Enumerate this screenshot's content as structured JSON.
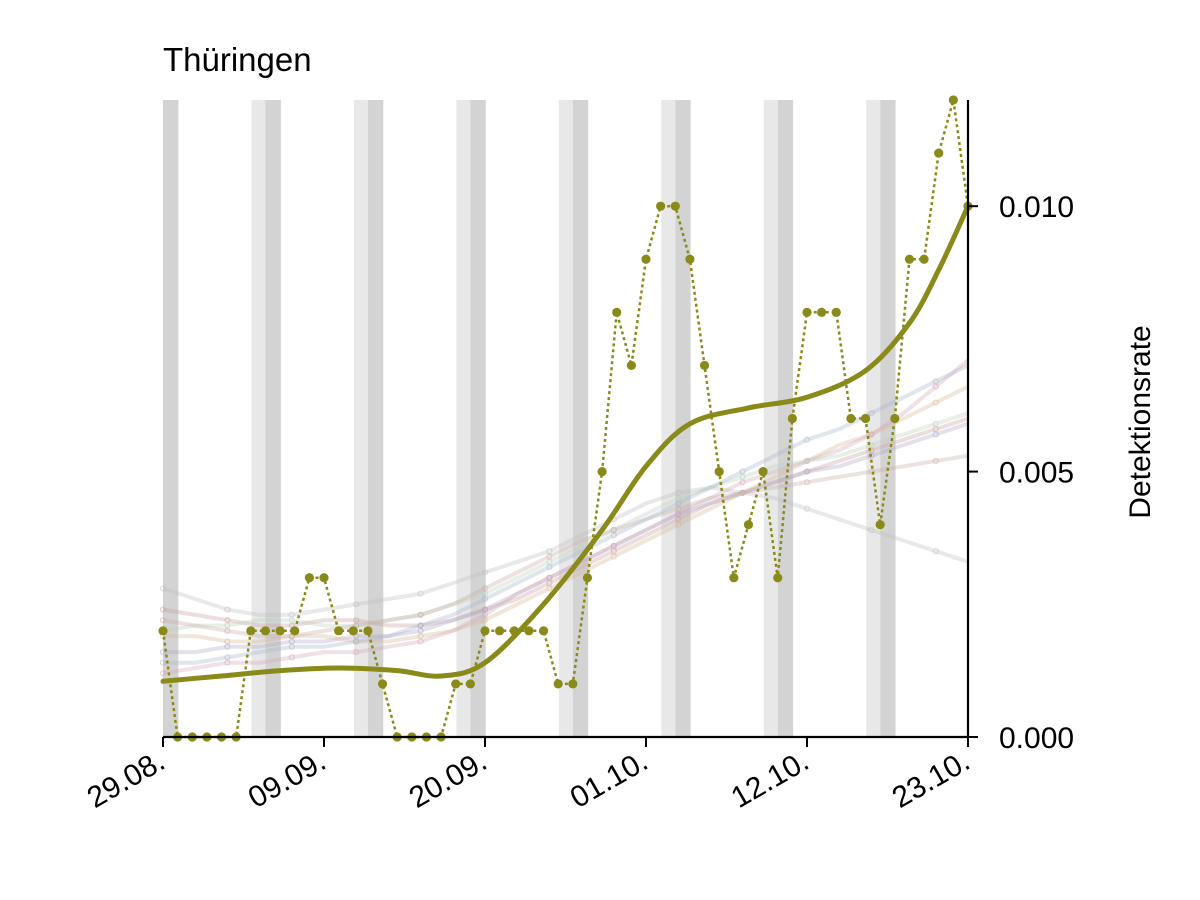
{
  "chart_data": {
    "type": "line",
    "title": "Thüringen",
    "ylabel": "Detektionsrate",
    "xlabel": "",
    "x_start": "29.08.",
    "x_ticks": [
      "29.08.",
      "09.09.",
      "20.09.",
      "01.10.",
      "12.10.",
      "23.10."
    ],
    "y_ticks": [
      "0.000",
      "0.005",
      "0.010"
    ],
    "ylim": [
      0,
      0.012
    ],
    "xlim": [
      "29.08.",
      "23.10."
    ],
    "y_axis_position": "right",
    "grid": false,
    "weekend_shading": true,
    "weekend_pairs": [
      [
        "28.08.",
        "29.08."
      ],
      [
        "04.09.",
        "05.09."
      ],
      [
        "11.09.",
        "12.09."
      ],
      [
        "18.09.",
        "19.09."
      ],
      [
        "25.09.",
        "26.09."
      ],
      [
        "02.10.",
        "03.10."
      ],
      [
        "09.10.",
        "10.10."
      ],
      [
        "16.10.",
        "17.10."
      ]
    ],
    "series": [
      {
        "role": "daily_rate",
        "style": "dotted-with-markers",
        "color": "#8a8a1a",
        "x": [
          "29.08.",
          "30.08.",
          "31.08.",
          "01.09.",
          "02.09.",
          "03.09.",
          "04.09.",
          "05.09.",
          "06.09.",
          "07.09.",
          "08.09.",
          "09.09.",
          "10.09.",
          "11.09.",
          "12.09.",
          "13.09.",
          "14.09.",
          "15.09.",
          "16.09.",
          "17.09.",
          "18.09.",
          "19.09.",
          "20.09.",
          "21.09.",
          "22.09.",
          "23.09.",
          "24.09.",
          "25.09.",
          "26.09.",
          "27.09.",
          "28.09.",
          "29.09.",
          "30.09.",
          "01.10.",
          "02.10.",
          "03.10.",
          "04.10.",
          "05.10.",
          "06.10.",
          "07.10.",
          "08.10.",
          "09.10.",
          "10.10.",
          "11.10.",
          "12.10.",
          "13.10.",
          "14.10.",
          "15.10.",
          "16.10.",
          "17.10.",
          "18.10.",
          "19.10.",
          "20.10.",
          "21.10.",
          "22.10.",
          "23.10."
        ],
        "values": [
          0.002,
          0,
          0,
          0,
          0,
          0,
          0.002,
          0.002,
          0.002,
          0.002,
          0.003,
          0.003,
          0.002,
          0.002,
          0.002,
          0.001,
          0,
          0,
          0,
          0,
          0.001,
          0.001,
          0.002,
          0.002,
          0.002,
          0.002,
          0.002,
          0.001,
          0.001,
          0.003,
          0.005,
          0.008,
          0.007,
          0.009,
          0.01,
          0.01,
          0.009,
          0.007,
          0.005,
          0.003,
          0.004,
          0.005,
          0.003,
          0.006,
          0.008,
          0.008,
          0.008,
          0.006,
          0.006,
          0.004,
          0.006,
          0.009,
          0.009,
          0.011,
          0.012,
          0.01
        ]
      },
      {
        "role": "smoothed_trend",
        "style": "solid",
        "color": "#8a8a1a",
        "x": [
          "29.08.",
          "02.09.",
          "06.09.",
          "10.09.",
          "14.09.",
          "17.09.",
          "20.09.",
          "24.09.",
          "28.09.",
          "01.10.",
          "04.10.",
          "08.10.",
          "12.10.",
          "16.10.",
          "19.10.",
          "21.10.",
          "23.10."
        ],
        "values": [
          0.00105,
          0.00115,
          0.00125,
          0.0013,
          0.00125,
          0.00115,
          0.0014,
          0.0025,
          0.0039,
          0.0051,
          0.0059,
          0.0062,
          0.0064,
          0.0069,
          0.0078,
          0.0088,
          0.01
        ]
      }
    ],
    "background_series": [
      {
        "color": "#c9a0a0",
        "values": [
          0.0024,
          0.0023,
          0.0022,
          0.0021,
          0.0021,
          0.0022,
          0.0022,
          0.0021,
          0.0021,
          0.0022,
          0.0024,
          0.0026,
          0.0029,
          0.0032,
          0.0035,
          0.0038,
          0.0041,
          0.0044,
          0.0046,
          0.0048,
          0.005,
          0.0052,
          0.0054,
          0.0056,
          0.0058,
          0.006
        ]
      },
      {
        "color": "#b0a8c8",
        "values": [
          0.0016,
          0.0016,
          0.0017,
          0.0017,
          0.0018,
          0.0018,
          0.0019,
          0.0019,
          0.002,
          0.0022,
          0.0024,
          0.0027,
          0.003,
          0.0033,
          0.0036,
          0.0039,
          0.0042,
          0.0044,
          0.0046,
          0.0048,
          0.005,
          0.0051,
          0.0053,
          0.0055,
          0.0057,
          0.0059
        ]
      },
      {
        "color": "#d8b89c",
        "values": [
          0.0019,
          0.0019,
          0.0018,
          0.0018,
          0.0019,
          0.0019,
          0.0018,
          0.0018,
          0.0019,
          0.002,
          0.0022,
          0.0025,
          0.0028,
          0.0031,
          0.0034,
          0.0037,
          0.004,
          0.0043,
          0.0046,
          0.0049,
          0.0052,
          0.0055,
          0.0057,
          0.006,
          0.0063,
          0.0066
        ]
      },
      {
        "color": "#c0c0c0",
        "values": [
          0.0028,
          0.0026,
          0.0024,
          0.0023,
          0.0023,
          0.0024,
          0.0025,
          0.0026,
          0.0027,
          0.0029,
          0.0031,
          0.0033,
          0.0035,
          0.0038,
          0.0041,
          0.0044,
          0.0046,
          0.0047,
          0.0046,
          0.0045,
          0.0043,
          0.0041,
          0.0039,
          0.0037,
          0.0035,
          0.0033
        ]
      },
      {
        "color": "#d4a8b8",
        "values": [
          0.0012,
          0.0013,
          0.0014,
          0.0014,
          0.0015,
          0.0016,
          0.0016,
          0.0017,
          0.0018,
          0.002,
          0.0023,
          0.0027,
          0.003,
          0.0033,
          0.0036,
          0.0039,
          0.0042,
          0.0045,
          0.0048,
          0.005,
          0.0052,
          0.0054,
          0.0057,
          0.0061,
          0.0066,
          0.0071
        ]
      },
      {
        "color": "#bcd0bc",
        "values": [
          0.002,
          0.0021,
          0.0021,
          0.0022,
          0.0022,
          0.0021,
          0.0021,
          0.0022,
          0.0023,
          0.0025,
          0.0027,
          0.003,
          0.0033,
          0.0036,
          0.0039,
          0.0042,
          0.0045,
          0.0047,
          0.0049,
          0.0051,
          0.0052,
          0.0053,
          0.0055,
          0.0057,
          0.0059,
          0.0061
        ]
      },
      {
        "color": "#c8b0a8",
        "values": [
          0.0022,
          0.0021,
          0.002,
          0.0019,
          0.0019,
          0.002,
          0.0021,
          0.0022,
          0.0023,
          0.0025,
          0.0028,
          0.0031,
          0.0034,
          0.0037,
          0.0039,
          0.0041,
          0.0043,
          0.0045,
          0.0046,
          0.0047,
          0.0048,
          0.0049,
          0.005,
          0.0051,
          0.0052,
          0.0053
        ]
      },
      {
        "color": "#aab4cc",
        "values": [
          0.0014,
          0.0014,
          0.0015,
          0.0016,
          0.0017,
          0.0017,
          0.0018,
          0.0019,
          0.0021,
          0.0023,
          0.0026,
          0.0029,
          0.0032,
          0.0035,
          0.0038,
          0.0041,
          0.0044,
          0.0047,
          0.005,
          0.0053,
          0.0056,
          0.0058,
          0.0061,
          0.0064,
          0.0067,
          0.007
        ]
      }
    ]
  }
}
